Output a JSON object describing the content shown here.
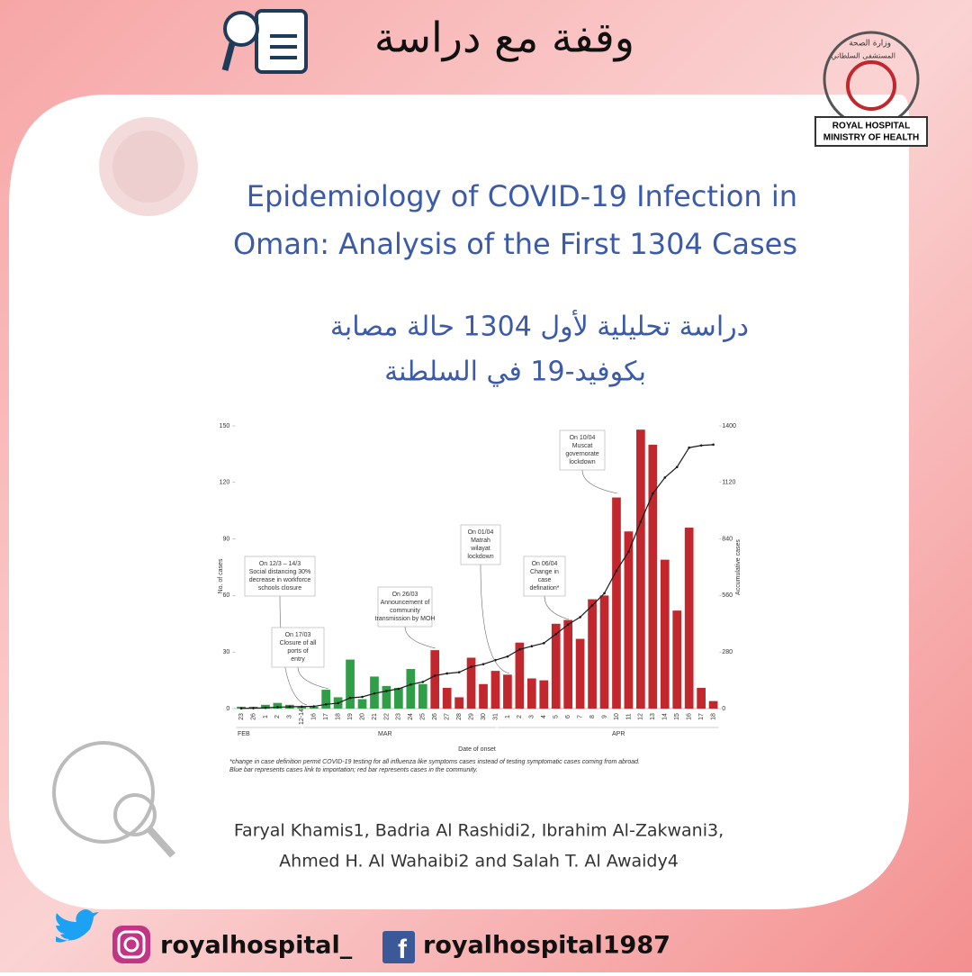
{
  "header": {
    "title": "وقفة مع دراسة"
  },
  "logo": {
    "arabic": [
      "وزارة الصحة",
      "المستشفى السلطاني"
    ],
    "english": [
      "ROYAL HOSPITAL",
      "MINISTRY OF HEALTH"
    ]
  },
  "title_en": [
    "Epidemiology of COVID-19 Infection in",
    "Oman: Analysis of the First 1304 Cases"
  ],
  "title_ar": [
    "دراسة تحليلية لأول 1304 حالة مصابة",
    "بكوفيد-19 في السلطنة"
  ],
  "chart_data": {
    "type": "bar",
    "categories": [
      "23",
      "26",
      "1",
      "2",
      "3",
      "12-14",
      "16",
      "17",
      "18",
      "19",
      "20",
      "21",
      "22",
      "23",
      "24",
      "25",
      "26",
      "27",
      "28",
      "29",
      "30",
      "31",
      "1",
      "2",
      "3",
      "4",
      "5",
      "6",
      "7",
      "8",
      "9",
      "10",
      "11",
      "12",
      "13",
      "14",
      "15",
      "16",
      "17",
      "18"
    ],
    "months": [
      "FEB",
      "MAR",
      "APR"
    ],
    "series": [
      {
        "color": "#2f9e46",
        "values": [
          1,
          1,
          2,
          3,
          2,
          1,
          1,
          10,
          6,
          26,
          5,
          17,
          12,
          11,
          21,
          13,
          null,
          null,
          null,
          null,
          null,
          null,
          null,
          null,
          null,
          null,
          null,
          null,
          null,
          null,
          null,
          null,
          null,
          null,
          null,
          null,
          null,
          null,
          null,
          null
        ]
      },
      {
        "color": "#c1272d",
        "values": [
          null,
          null,
          null,
          null,
          null,
          null,
          null,
          null,
          null,
          null,
          null,
          null,
          null,
          null,
          null,
          null,
          31,
          11,
          6,
          27,
          13,
          20,
          18,
          35,
          16,
          15,
          45,
          47,
          37,
          58,
          60,
          112,
          94,
          148,
          140,
          79,
          52,
          96,
          11,
          4
        ]
      },
      {
        "type": "line",
        "axis": "y2",
        "color": "#1a1a1a",
        "values": [
          1,
          2,
          4,
          7,
          9,
          10,
          11,
          21,
          27,
          53,
          58,
          75,
          87,
          98,
          119,
          132,
          163,
          174,
          180,
          207,
          220,
          240,
          258,
          293,
          309,
          324,
          369,
          416,
          453,
          511,
          571,
          683,
          777,
          925,
          1065,
          1144,
          1196,
          1292,
          1303,
          1307
        ]
      }
    ],
    "ylim": [
      0,
      150
    ],
    "yticks": [
      0,
      30,
      60,
      90,
      120,
      150
    ],
    "y2lim": [
      0,
      1400
    ],
    "y2ticks": [
      0,
      280,
      560,
      840,
      1120,
      1400
    ],
    "y_label": "No. of cases",
    "y2_label": "Accumulative cases",
    "x_label": "Date of onset",
    "annotations": [
      [
        "On 12/3 – 14/3",
        "Social distancing 30%",
        "decrease in workforce",
        "schools closure"
      ],
      [
        "On 17/03",
        "Closure of all",
        "ports of",
        "entry"
      ],
      [
        "On 26/03",
        "Announcement of",
        "community",
        "transmission by MOH"
      ],
      [
        "On 01/04",
        "Matrah",
        "wilayat",
        "lockdown"
      ],
      [
        "On 06/04",
        "Change in",
        "case",
        "defination*"
      ],
      [
        "On 10/04",
        "Muscat",
        "governorate",
        "lockdown"
      ]
    ],
    "notes": [
      "*change in case definition permit COVID-19 testing for all influenza like symptoms cases instead of testing symptomatic cases coming from abroad.",
      "Blue bar represents cases link to importation; red bar represents cases in the community."
    ]
  },
  "authors": [
    "Faryal Khamis1, Badria Al Rashidi2, Ibrahim Al-Zakwani3,",
    "Ahmed H. Al Wahaibi2 and Salah T. Al Awaidy4"
  ],
  "footer": {
    "instagram": "royalhospital_",
    "facebook": "royalhospital1987"
  }
}
